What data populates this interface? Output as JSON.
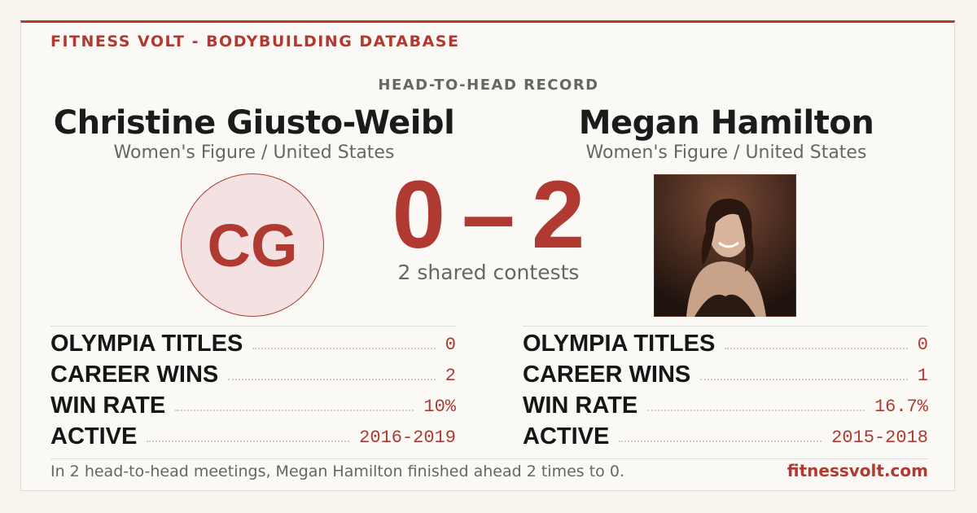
{
  "header": {
    "brand": "FITNESS VOLT - BODYBUILDING DATABASE",
    "section": "HEAD-TO-HEAD RECORD"
  },
  "athletes": [
    {
      "name": "Christine Giusto-Weibl",
      "division": "Women's Figure / United States",
      "initials": "CG",
      "stats": [
        {
          "label": "OLYMPIA TITLES",
          "value": "0"
        },
        {
          "label": "CAREER WINS",
          "value": "2"
        },
        {
          "label": "WIN RATE",
          "value": "10%"
        },
        {
          "label": "ACTIVE",
          "value": "2016-2019"
        }
      ]
    },
    {
      "name": "Megan Hamilton",
      "division": "Women's Figure / United States",
      "stats": [
        {
          "label": "OLYMPIA TITLES",
          "value": "0"
        },
        {
          "label": "CAREER WINS",
          "value": "1"
        },
        {
          "label": "WIN RATE",
          "value": "16.7%"
        },
        {
          "label": "ACTIVE",
          "value": "2015-2018"
        }
      ]
    }
  ],
  "score": {
    "left": "0",
    "separator": "–",
    "right": "2",
    "caption": "2 shared contests"
  },
  "footer": {
    "summary": "In 2 head-to-head meetings, Megan Hamilton finished ahead 2 times to 0.",
    "site": "fitnessvolt.com"
  }
}
